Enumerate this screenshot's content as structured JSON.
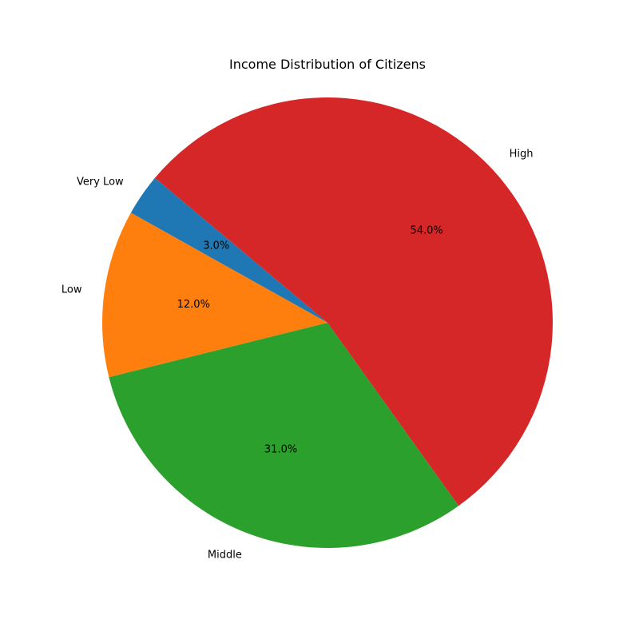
{
  "chart_data": {
    "type": "pie",
    "title": "Income Distribution of Citizens",
    "start_angle_deg": 140,
    "direction": "counterclockwise",
    "slices": [
      {
        "label": "Very Low",
        "value": 3.0,
        "pct_label": "3.0%",
        "color": "#1f77b4"
      },
      {
        "label": "Low",
        "value": 12.0,
        "pct_label": "12.0%",
        "color": "#ff7f0e"
      },
      {
        "label": "Middle",
        "value": 31.0,
        "pct_label": "31.0%",
        "color": "#2ca02c"
      },
      {
        "label": "High",
        "value": 54.0,
        "pct_label": "54.0%",
        "color": "#d62728"
      }
    ]
  }
}
